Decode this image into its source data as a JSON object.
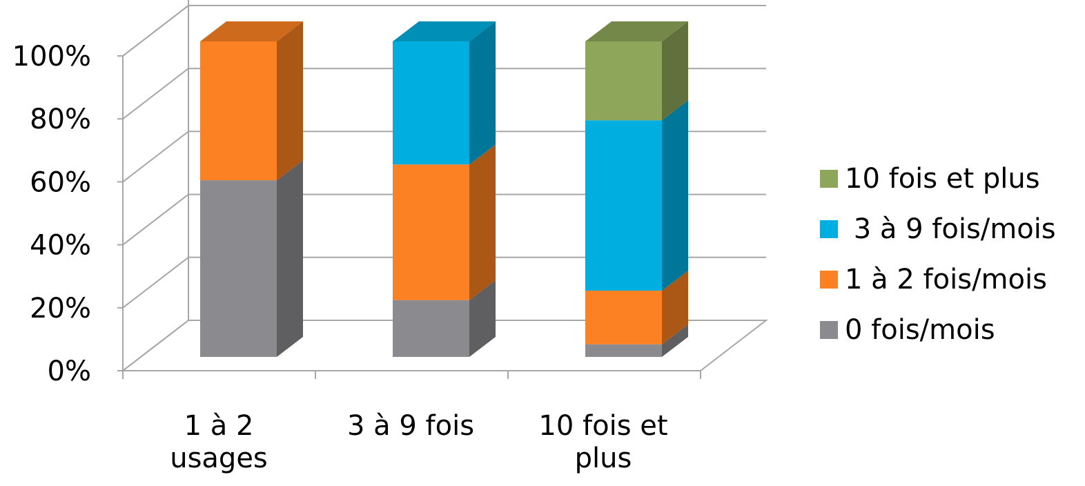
{
  "chart_data": {
    "type": "bar",
    "stacked": true,
    "three_d": true,
    "categories": [
      [
        "1 à 2",
        "usages"
      ],
      [
        "3 à 9 fois"
      ],
      [
        "10 fois et",
        "plus"
      ]
    ],
    "series": [
      {
        "name": "0 fois/mois",
        "values": [
          56,
          18,
          4
        ],
        "color": "#8b8b8f"
      },
      {
        "name": "1 à 2 fois/mois",
        "values": [
          44,
          43,
          17
        ],
        "color": "#fb8122"
      },
      {
        "name": " 3 à 9 fois/mois",
        "values": [
          0,
          39,
          54
        ],
        "color": "#00aedf"
      },
      {
        "name": "10 fois et plus",
        "values": [
          0,
          0,
          25
        ],
        "color": "#8da65a"
      }
    ],
    "y_ticks": [
      "0%",
      "20%",
      "40%",
      "60%",
      "80%",
      "100%"
    ],
    "ylim": [
      0,
      100
    ],
    "grid": true,
    "legend_position": "right",
    "title": "",
    "xlabel": "",
    "ylabel": ""
  }
}
